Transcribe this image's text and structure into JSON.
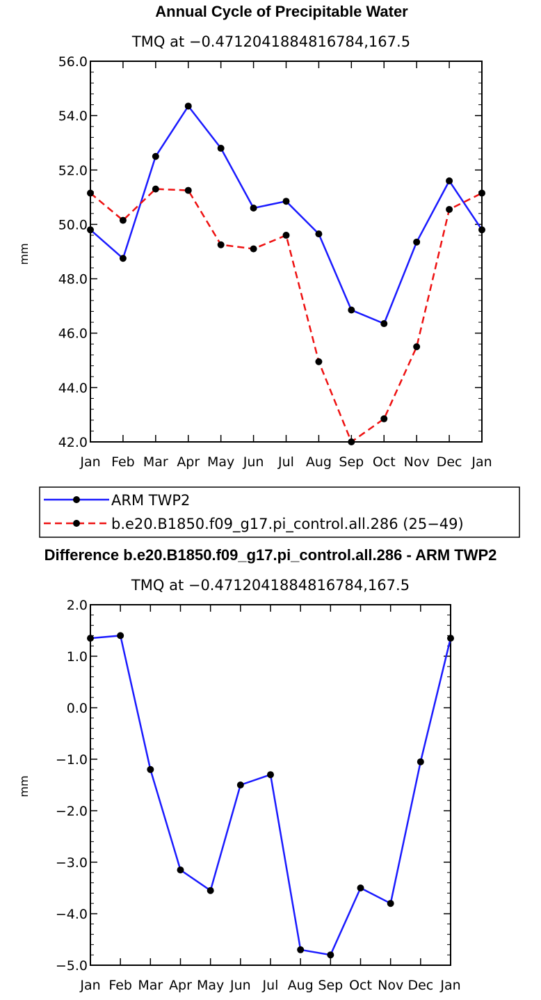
{
  "chart_data": [
    {
      "type": "line",
      "title": "Annual Cycle of Precipitable Water",
      "subtitle": "TMQ at −0.4712041884816784,167.5",
      "xlabel": "",
      "ylabel": "mm",
      "ylim": [
        42.0,
        56.0
      ],
      "yticks": [
        42.0,
        44.0,
        46.0,
        48.0,
        50.0,
        52.0,
        54.0,
        56.0
      ],
      "ytick_labels": [
        "42.0",
        "44.0",
        "46.0",
        "48.0",
        "50.0",
        "52.0",
        "54.0",
        "56.0"
      ],
      "categories": [
        "Jan",
        "Feb",
        "Mar",
        "Apr",
        "May",
        "Jun",
        "Jul",
        "Aug",
        "Sep",
        "Oct",
        "Nov",
        "Dec",
        "Jan"
      ],
      "series": [
        {
          "name": "ARM TWP2",
          "color": "#1a1aff",
          "style": "solid",
          "values": [
            49.8,
            48.75,
            52.5,
            54.35,
            52.8,
            50.6,
            50.85,
            49.65,
            46.85,
            46.35,
            49.35,
            51.6,
            49.8
          ]
        },
        {
          "name": "b.e20.B1850.f09_g17.pi_control.all.286 (25−49)",
          "color": "#ee1111",
          "style": "dashed",
          "values": [
            51.15,
            50.15,
            51.3,
            51.25,
            49.25,
            49.1,
            49.6,
            44.95,
            42.0,
            42.85,
            45.5,
            50.55,
            51.15
          ]
        }
      ],
      "grid": false,
      "legend_position": "below"
    },
    {
      "type": "line",
      "title": "Difference b.e20.B1850.f09_g17.pi_control.all.286 - ARM TWP2",
      "subtitle": "TMQ at −0.4712041884816784,167.5",
      "xlabel": "",
      "ylabel": "mm",
      "ylim": [
        -5.0,
        2.0
      ],
      "yticks": [
        -5.0,
        -4.0,
        -3.0,
        -2.0,
        -1.0,
        0.0,
        1.0,
        2.0
      ],
      "ytick_labels": [
        "−5.0",
        "−4.0",
        "−3.0",
        "−2.0",
        "−1.0",
        "0.0",
        "1.0",
        "2.0"
      ],
      "categories": [
        "Jan",
        "Feb",
        "Mar",
        "Apr",
        "May",
        "Jun",
        "Jul",
        "Aug",
        "Sep",
        "Oct",
        "Nov",
        "Dec",
        "Jan"
      ],
      "series": [
        {
          "name": "Difference",
          "color": "#1a1aff",
          "style": "solid",
          "values": [
            1.35,
            1.4,
            -1.2,
            -3.15,
            -3.55,
            -1.5,
            -1.3,
            -4.7,
            -4.8,
            -3.5,
            -3.8,
            -1.05,
            1.35
          ]
        }
      ],
      "grid": false,
      "legend_position": "none"
    }
  ]
}
